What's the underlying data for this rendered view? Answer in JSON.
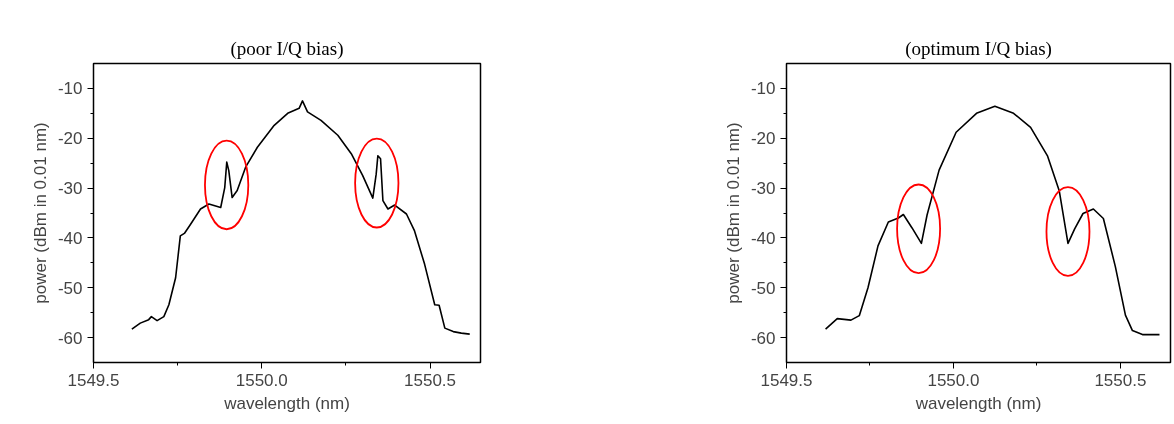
{
  "chart_data": [
    {
      "type": "line",
      "title": "(poor I/Q bias)",
      "xlabel": "wavelength (nm)",
      "ylabel": "power (dBm in 0.01 nm)",
      "xlim": [
        1549.5,
        1550.65
      ],
      "ylim": [
        -65,
        -5
      ],
      "xticks": [
        {
          "value": 1549.5,
          "label": "1549.5"
        },
        {
          "value": 1550,
          "label": "1550.0"
        },
        {
          "value": 1550.5,
          "label": "1550.5"
        }
      ],
      "yticks": [
        -10,
        -20,
        -30,
        -40,
        -50,
        -60
      ],
      "grid": false,
      "series": [
        {
          "color": "#000000",
          "x": [
            1549.614,
            1549.639,
            1549.664,
            1549.672,
            1549.689,
            1549.709,
            1549.724,
            1549.744,
            1549.758,
            1549.77,
            1549.788,
            1549.818,
            1549.843,
            1549.878,
            1549.89,
            1549.896,
            1549.902,
            1549.912,
            1549.927,
            1549.952,
            1549.987,
            1550.037,
            1550.077,
            1550.111,
            1550.121,
            1550.136,
            1550.176,
            1550.226,
            1550.266,
            1550.3,
            1550.33,
            1550.34,
            1550.345,
            1550.353,
            1550.36,
            1550.375,
            1550.395,
            1550.43,
            1550.454,
            1550.484,
            1550.514,
            1550.527,
            1550.544,
            1550.569,
            1550.593,
            1550.618
          ],
          "values": [
            -58.3,
            -57.1,
            -56.4,
            -55.8,
            -56.6,
            -55.8,
            -53.4,
            -48.0,
            -39.6,
            -39.1,
            -37.3,
            -34.2,
            -33.2,
            -33.9,
            -29.9,
            -24.8,
            -26.5,
            -31.9,
            -30.5,
            -25.8,
            -21.8,
            -17.4,
            -15.0,
            -14.0,
            -12.5,
            -14.7,
            -16.4,
            -19.4,
            -23.1,
            -27.5,
            -32.0,
            -27.2,
            -23.5,
            -24.1,
            -32.5,
            -34.2,
            -33.4,
            -35.2,
            -38.6,
            -45.3,
            -53.4,
            -53.5,
            -58.1,
            -58.8,
            -59.1,
            -59.3
          ]
        }
      ]
    },
    {
      "type": "line",
      "title": "(optimum I/Q bias)",
      "xlabel": "wavelength (nm)",
      "ylabel": "power (dBm in 0.01 nm)",
      "xlim": [
        1549.5,
        1550.65
      ],
      "ylim": [
        -65,
        -5
      ],
      "xticks": [
        {
          "value": 1549.5,
          "label": "1549.5"
        },
        {
          "value": 1550,
          "label": "1550.0"
        },
        {
          "value": 1550.5,
          "label": "1550.5"
        }
      ],
      "yticks": [
        -10,
        -20,
        -30,
        -40,
        -50,
        -60
      ],
      "grid": false,
      "series": [
        {
          "color": "#000000",
          "x": [
            1549.617,
            1549.652,
            1549.693,
            1549.718,
            1549.744,
            1549.774,
            1549.805,
            1549.835,
            1549.85,
            1549.876,
            1549.904,
            1549.921,
            1549.957,
            1550.008,
            1550.069,
            1550.124,
            1550.18,
            1550.231,
            1550.282,
            1550.317,
            1550.343,
            1550.363,
            1550.388,
            1550.419,
            1550.449,
            1550.485,
            1550.515,
            1550.536,
            1550.566,
            1550.617
          ],
          "values": [
            -58.3,
            -56.2,
            -56.5,
            -55.6,
            -50.0,
            -41.6,
            -36.8,
            -36.0,
            -35.3,
            -38.0,
            -41.1,
            -35.4,
            -26.4,
            -18.8,
            -15.0,
            -13.6,
            -15.0,
            -17.8,
            -23.6,
            -30.6,
            -41.1,
            -38.2,
            -35.1,
            -34.2,
            -36.1,
            -45.8,
            -55.5,
            -58.6,
            -59.4,
            -59.4
          ]
        }
      ]
    }
  ]
}
